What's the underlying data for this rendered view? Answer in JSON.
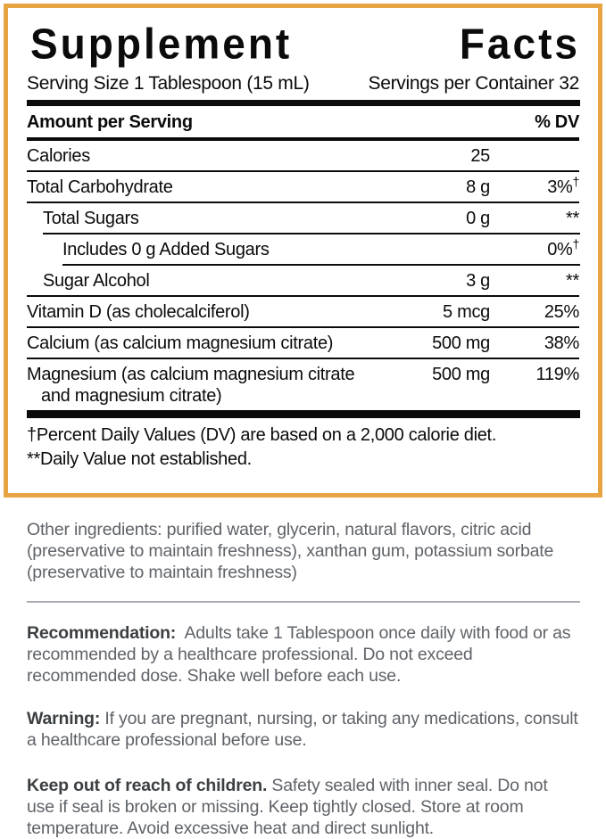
{
  "colors": {
    "panel_border": "#E8A443",
    "table_text": "#0b0b0b",
    "body_text": "#5f6368",
    "bold_text": "#3c4043",
    "divider": "#a9adb2"
  },
  "panel": {
    "title": {
      "word1": "Supplement",
      "word2": "Facts"
    },
    "serving_size": "Serving Size 1 Tablespoon (15 mL)",
    "servings_per_container": "Servings per Container 32",
    "header": {
      "amount_label": "Amount per Serving",
      "dv_label": "% DV"
    },
    "rows": [
      {
        "name": "Calories",
        "amount": "25",
        "dv": ""
      },
      {
        "name": "Total Carbohydrate",
        "amount": "8 g",
        "dv": "3%",
        "dv_sup": "†"
      },
      {
        "name": "Total Sugars",
        "amount": "0 g",
        "dv": "**"
      },
      {
        "name": "Includes 0 g Added Sugars",
        "amount": "",
        "dv": "0%",
        "dv_sup": "†"
      },
      {
        "name": "Sugar Alcohol",
        "amount": "3 g",
        "dv": "**"
      },
      {
        "name": "Vitamin D (as cholecalciferol)",
        "amount": "5 mcg",
        "dv": "25%"
      },
      {
        "name": "Calcium (as calcium magnesium citrate)",
        "amount": "500 mg",
        "dv": "38%"
      },
      {
        "name": "Magnesium (as calcium magnesium citrate",
        "name_line2": "and magnesium citrate)",
        "amount": "500 mg",
        "dv": "119%"
      }
    ],
    "footnotes": [
      "†Percent Daily Values (DV) are based on a 2,000 calorie diet.",
      "**Daily Value not established."
    ]
  },
  "sections": {
    "other_ingredients": "Other ingredients: purified water, glycerin, natural flavors, citric acid (preservative to maintain freshness), xanthan gum, potassium sorbate (preservative to maintain freshness)",
    "recommendation_label": "Recommendation:",
    "recommendation_text": "Adults take 1 Tablespoon once daily with food or as recommended by a healthcare professional. Do not exceed recommended dose. Shake well before each use.",
    "warning_label": "Warning:",
    "warning_text": "If you are pregnant, nursing, or taking any medications, consult a healthcare professional before use.",
    "keep_label": "Keep out of reach of children.",
    "keep_text": "Safety sealed with inner seal. Do not use if seal is broken or missing. Keep tightly closed. Store at room temperature. Avoid excessive heat and direct sunlight."
  }
}
